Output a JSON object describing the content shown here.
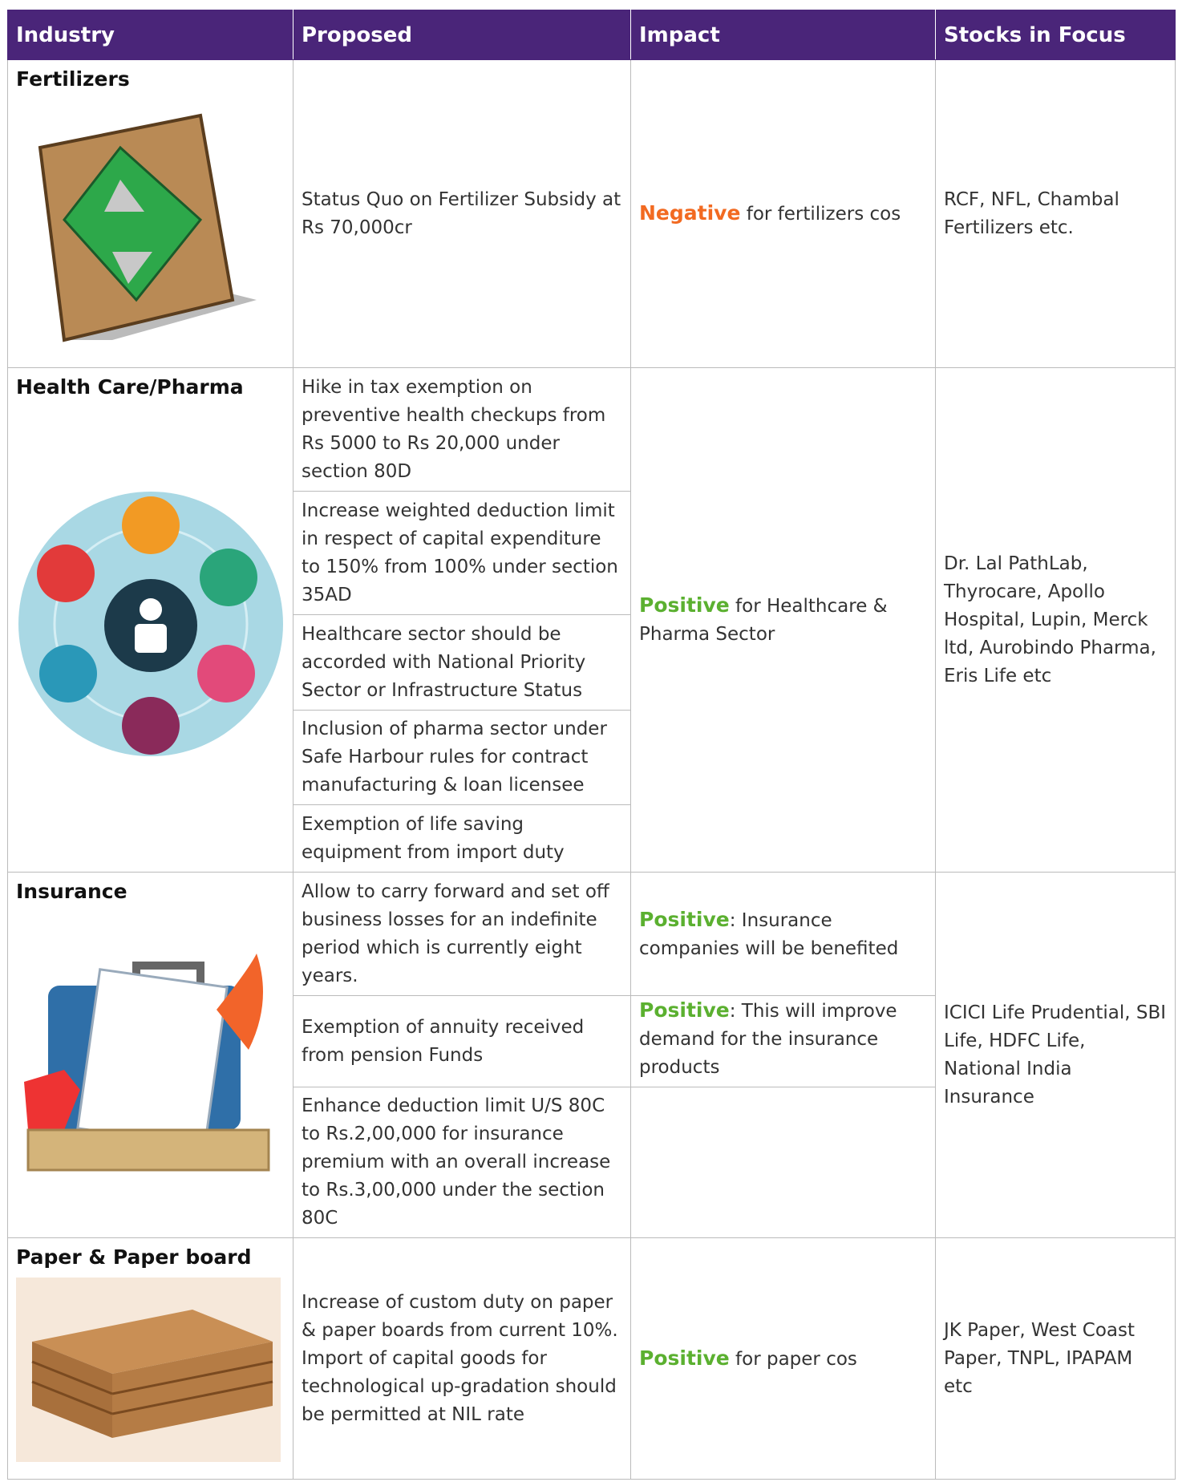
{
  "header": {
    "columns": [
      "Industry",
      "Proposed",
      "Impact",
      "Stocks in Focus"
    ]
  },
  "rows": [
    {
      "industry": "Fertilizers",
      "proposed": [
        "Status Quo on Fertilizer Subsidy at Rs 70,000cr"
      ],
      "impact": [
        {
          "label": "Negative",
          "text": " for fertilizers cos"
        }
      ],
      "stocks": "RCF, NFL, Chambal Fertilizers etc."
    },
    {
      "industry": "Health Care/Pharma",
      "proposed": [
        "Hike in tax exemption on preventive health checkups from Rs 5000 to Rs 20,000 under section 80D",
        "Increase weighted deduction limit in respect of capital expenditure to 150% from 100% under section 35AD",
        "Healthcare sector should be accorded with National Priority Sector or Infrastructure Status",
        "Inclusion of pharma sector under Safe Harbour rules for contract manufacturing & loan licensee",
        "Exemption of life saving equipment from import duty"
      ],
      "impact": [
        {
          "label": "Positive",
          "text": " for Healthcare & Pharma Sector"
        }
      ],
      "stocks": "Dr. Lal PathLab, Thyrocare, Apollo Hospital, Lupin, Merck ltd, Aurobindo Pharma, Eris Life etc"
    },
    {
      "industry": "Insurance",
      "proposed": [
        "Allow to carry forward and set off business losses for an indefinite period which is currently eight years.",
        "Exemption of annuity received from pension Funds",
        "Enhance deduction limit U/S 80C to Rs.2,00,000 for insurance premium with an overall increase to Rs.3,00,000 under the section 80C"
      ],
      "impact": [
        {
          "label": "Positive",
          "text": ": Insurance companies will be benefited"
        },
        {
          "label": "Positive",
          "text": ": This will improve demand for the insurance products"
        }
      ],
      "stocks": "ICICI Life Prudential, SBI Life, HDFC Life, National India Insurance"
    },
    {
      "industry": "Paper & Paper board",
      "proposed": [
        "Increase of custom duty on paper & paper boards from current 10%. Import of capital goods for technological up-gradation should be permitted at NIL rate"
      ],
      "impact": [
        {
          "label": "Positive",
          "text": " for paper cos"
        }
      ],
      "stocks": "JK Paper, West Coast Paper, TNPL, IPAPAM etc"
    }
  ]
}
